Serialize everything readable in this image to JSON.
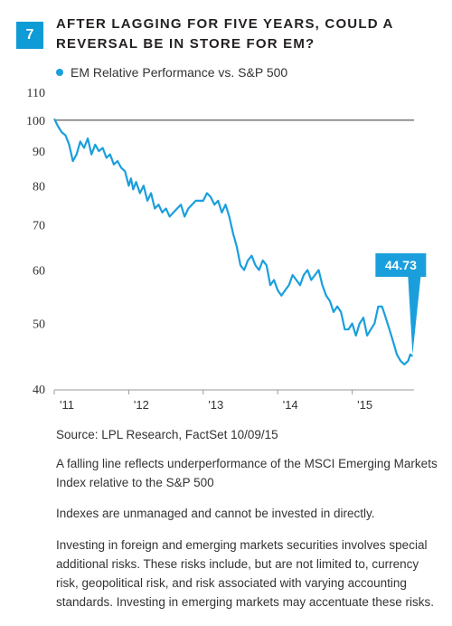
{
  "figure": {
    "number": "7",
    "title": "AFTER LAGGING FOR FIVE YEARS, COULD A REVERSAL BE IN STORE FOR EM?"
  },
  "legend": {
    "label": "EM Relative Performance vs. S&P 500",
    "color": "#1a9fdc"
  },
  "chart_data": {
    "type": "line",
    "title": "",
    "xlabel": "",
    "ylabel": "",
    "yscale": "log",
    "ylim": [
      40,
      110
    ],
    "yticks": [
      40,
      50,
      60,
      70,
      80,
      90,
      100,
      110
    ],
    "xlim": [
      2011.0,
      2015.83
    ],
    "xticks": [
      2011,
      2012,
      2013,
      2014,
      2015
    ],
    "xtick_labels": [
      "'11",
      "'12",
      "'13",
      "'14",
      "'15"
    ],
    "reference_line": 100,
    "grid": false,
    "legend_position": "top-left",
    "annotation": {
      "label": "44.73",
      "value": 44.73,
      "color": "#1a9fdc"
    },
    "series": [
      {
        "name": "EM Relative Performance vs. S&P 500",
        "color": "#1a9fdc",
        "x": [
          2011.0,
          2011.05,
          2011.1,
          2011.15,
          2011.2,
          2011.25,
          2011.3,
          2011.35,
          2011.4,
          2011.45,
          2011.5,
          2011.55,
          2011.6,
          2011.65,
          2011.7,
          2011.75,
          2011.8,
          2011.85,
          2011.9,
          2011.95,
          2012.0,
          2012.03,
          2012.06,
          2012.1,
          2012.15,
          2012.2,
          2012.25,
          2012.3,
          2012.35,
          2012.4,
          2012.45,
          2012.5,
          2012.55,
          2012.6,
          2012.65,
          2012.7,
          2012.75,
          2012.8,
          2012.85,
          2012.9,
          2012.95,
          2013.0,
          2013.05,
          2013.1,
          2013.15,
          2013.2,
          2013.25,
          2013.3,
          2013.35,
          2013.4,
          2013.45,
          2013.5,
          2013.55,
          2013.6,
          2013.65,
          2013.7,
          2013.75,
          2013.8,
          2013.85,
          2013.9,
          2013.95,
          2014.0,
          2014.05,
          2014.1,
          2014.15,
          2014.2,
          2014.25,
          2014.3,
          2014.35,
          2014.4,
          2014.45,
          2014.5,
          2014.55,
          2014.6,
          2014.65,
          2014.7,
          2014.75,
          2014.8,
          2014.85,
          2014.9,
          2014.95,
          2015.0,
          2015.05,
          2015.1,
          2015.15,
          2015.2,
          2015.25,
          2015.3,
          2015.35,
          2015.4,
          2015.45,
          2015.5,
          2015.55,
          2015.6,
          2015.65,
          2015.7,
          2015.75,
          2015.78,
          2015.81
        ],
        "values": [
          100.5,
          98,
          96,
          95,
          92,
          87,
          89,
          93,
          91,
          94,
          89,
          92,
          90,
          91,
          88,
          89,
          86,
          87,
          85,
          84,
          80,
          82,
          79,
          81,
          78,
          80,
          76,
          78,
          74,
          75,
          73,
          74,
          72,
          73,
          74,
          75,
          72,
          74,
          75,
          76,
          76,
          76,
          78,
          77,
          75,
          76,
          73,
          75,
          72,
          68,
          65,
          61,
          60,
          62,
          63,
          61,
          60,
          62,
          61,
          57,
          58,
          56,
          55,
          56,
          57,
          59,
          58,
          57,
          59,
          60,
          58,
          59,
          60,
          57,
          55,
          54,
          52,
          53,
          52,
          49,
          49,
          50,
          48,
          50,
          51,
          48,
          49,
          50,
          53,
          53,
          51,
          49,
          47,
          45,
          44,
          43.5,
          44,
          45,
          44.73
        ]
      }
    ]
  },
  "notes": {
    "source": "Source: LPL Research, FactSet   10/09/15",
    "note1": "A falling line reflects underperformance of the MSCI Emerging Markets Index relative to the S&P 500",
    "note2": "Indexes are unmanaged and cannot be invested in directly.",
    "note3": "Investing in foreign and emerging markets securities involves special additional risks. These risks include, but are not limited to, currency risk, geopolitical risk, and risk associated with varying accounting standards. Investing in emerging markets may accentuate these risks."
  }
}
